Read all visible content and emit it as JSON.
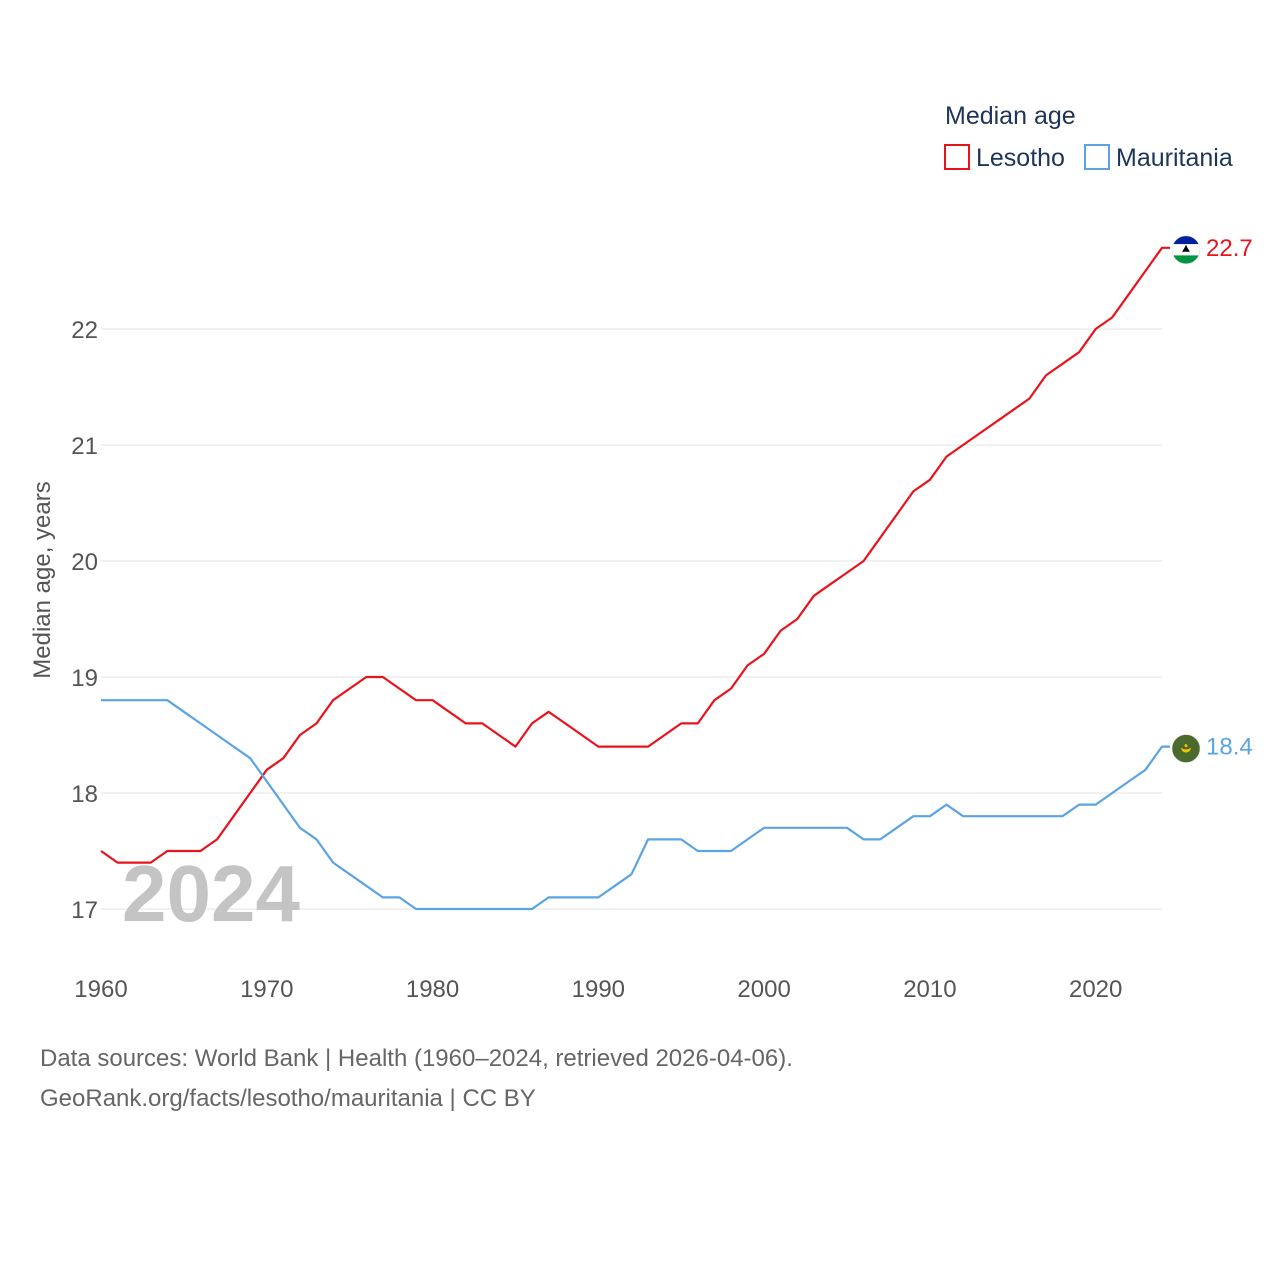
{
  "chart_data": {
    "type": "line",
    "legend_title": "Median age",
    "ylabel": "Median age, years",
    "xlabel": "",
    "watermark_year": "2024",
    "xlim": [
      1960,
      2024
    ],
    "ylim": [
      16.6,
      23.2
    ],
    "x_ticks": [
      1960,
      1970,
      1980,
      1990,
      2000,
      2010,
      2020
    ],
    "y_ticks": [
      17,
      18,
      19,
      20,
      21,
      22
    ],
    "legend_position": "top-right",
    "x": [
      1960,
      1961,
      1962,
      1963,
      1964,
      1965,
      1966,
      1967,
      1968,
      1969,
      1970,
      1971,
      1972,
      1973,
      1974,
      1975,
      1976,
      1977,
      1978,
      1979,
      1980,
      1981,
      1982,
      1983,
      1984,
      1985,
      1986,
      1987,
      1988,
      1989,
      1990,
      1991,
      1992,
      1993,
      1994,
      1995,
      1996,
      1997,
      1998,
      1999,
      2000,
      2001,
      2002,
      2003,
      2004,
      2005,
      2006,
      2007,
      2008,
      2009,
      2010,
      2011,
      2012,
      2013,
      2014,
      2015,
      2016,
      2017,
      2018,
      2019,
      2020,
      2021,
      2022,
      2023,
      2024
    ],
    "series": [
      {
        "name": "Lesotho",
        "color": "#e8141c",
        "end_value": "22.7",
        "flag": "lesotho-flag",
        "values": [
          17.5,
          17.4,
          17.4,
          17.4,
          17.5,
          17.5,
          17.5,
          17.6,
          17.8,
          18.0,
          18.2,
          18.3,
          18.5,
          18.6,
          18.8,
          18.9,
          19.0,
          19.0,
          18.9,
          18.8,
          18.8,
          18.7,
          18.6,
          18.6,
          18.5,
          18.4,
          18.6,
          18.7,
          18.6,
          18.5,
          18.4,
          18.4,
          18.4,
          18.4,
          18.5,
          18.6,
          18.6,
          18.8,
          18.9,
          19.1,
          19.2,
          19.4,
          19.5,
          19.7,
          19.8,
          19.9,
          20.0,
          20.2,
          20.4,
          20.6,
          20.7,
          20.9,
          21.0,
          21.1,
          21.2,
          21.3,
          21.4,
          21.6,
          21.7,
          21.8,
          22.0,
          22.1,
          22.3,
          22.5,
          22.7
        ]
      },
      {
        "name": "Mauritania",
        "color": "#5aa4e6",
        "end_value": "18.4",
        "flag": "mauritania-flag",
        "values": [
          18.8,
          18.8,
          18.8,
          18.8,
          18.8,
          18.7,
          18.6,
          18.5,
          18.4,
          18.3,
          18.1,
          17.9,
          17.7,
          17.6,
          17.4,
          17.3,
          17.2,
          17.1,
          17.1,
          17.0,
          17.0,
          17.0,
          17.0,
          17.0,
          17.0,
          17.0,
          17.0,
          17.1,
          17.1,
          17.1,
          17.1,
          17.2,
          17.3,
          17.6,
          17.6,
          17.6,
          17.5,
          17.5,
          17.5,
          17.6,
          17.7,
          17.7,
          17.7,
          17.7,
          17.7,
          17.7,
          17.6,
          17.6,
          17.7,
          17.8,
          17.8,
          17.9,
          17.8,
          17.8,
          17.8,
          17.8,
          17.8,
          17.8,
          17.8,
          17.9,
          17.9,
          18.0,
          18.1,
          18.2,
          18.4
        ]
      }
    ]
  },
  "source": {
    "line1": "Data sources: World Bank | Health (1960–2024, retrieved 2026-04-06).",
    "line2": "GeoRank.org/facts/lesotho/mauritania | CC BY"
  }
}
